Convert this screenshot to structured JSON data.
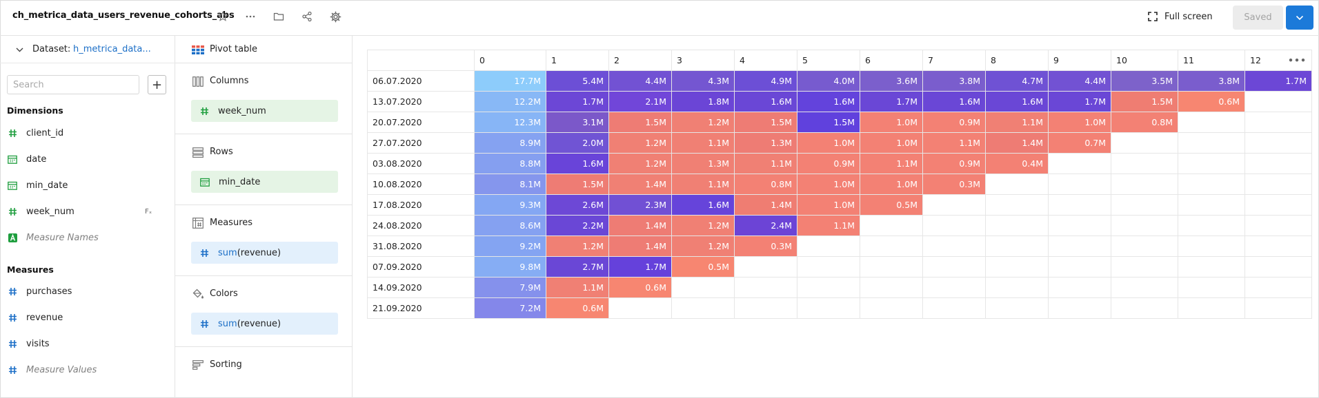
{
  "header": {
    "title": "ch_metrica_data_users_revenue_cohorts_abs",
    "fullscreen_label": "Full screen",
    "saved_label": "Saved",
    "icons": [
      "star-icon",
      "more-icon",
      "folder-icon",
      "share-icon",
      "settings-icon",
      "chevron-down-icon"
    ]
  },
  "dataset": {
    "label": "Dataset:",
    "name": "h_metrica_data...",
    "search_placeholder": "Search",
    "dimensions_heading": "Dimensions",
    "dimensions": [
      {
        "label": "client_id",
        "type": "number",
        "italic": false
      },
      {
        "label": "date",
        "type": "date",
        "italic": false
      },
      {
        "label": "min_date",
        "type": "date",
        "italic": false
      },
      {
        "label": "week_num",
        "type": "number",
        "italic": false,
        "formula_badge": "Fₓ"
      },
      {
        "label": "Measure Names",
        "type": "string",
        "italic": true
      }
    ],
    "measures_heading": "Measures",
    "measures": [
      {
        "label": "purchases",
        "italic": false
      },
      {
        "label": "revenue",
        "italic": false
      },
      {
        "label": "visits",
        "italic": false
      },
      {
        "label": "Measure Values",
        "italic": true
      }
    ]
  },
  "wizard": {
    "visualization": "Pivot table",
    "sections": {
      "columns": {
        "title": "Columns",
        "chip": "week_num"
      },
      "rows": {
        "title": "Rows",
        "chip": "min_date"
      },
      "measures": {
        "title": "Measures",
        "chip_fn": "sum",
        "chip_arg": "(revenue)"
      },
      "colors": {
        "title": "Colors",
        "chip_fn": "sum",
        "chip_arg": "(revenue)"
      },
      "sorting": {
        "title": "Sorting"
      }
    }
  },
  "pivot": {
    "columns": [
      "0",
      "1",
      "2",
      "3",
      "4",
      "5",
      "6",
      "7",
      "8",
      "9",
      "10",
      "11",
      "12"
    ],
    "rows": [
      {
        "date": "06.07.2020",
        "values": [
          "17.7M",
          "5.4M",
          "4.4M",
          "4.3M",
          "4.9M",
          "4.0M",
          "3.6M",
          "3.8M",
          "4.7M",
          "4.4M",
          "3.5M",
          "3.8M",
          "1.7M"
        ]
      },
      {
        "date": "13.07.2020",
        "values": [
          "12.2M",
          "1.7M",
          "2.1M",
          "1.8M",
          "1.6M",
          "1.6M",
          "1.7M",
          "1.6M",
          "1.6M",
          "1.7M",
          "1.5M",
          "0.6M"
        ]
      },
      {
        "date": "20.07.2020",
        "values": [
          "12.3M",
          "3.1M",
          "1.5M",
          "1.2M",
          "1.5M",
          "1.5M",
          "1.0M",
          "0.9M",
          "1.1M",
          "1.0M",
          "0.8M"
        ]
      },
      {
        "date": "27.07.2020",
        "values": [
          "8.9M",
          "2.0M",
          "1.2M",
          "1.1M",
          "1.3M",
          "1.0M",
          "1.0M",
          "1.1M",
          "1.4M",
          "0.7M"
        ]
      },
      {
        "date": "03.08.2020",
        "values": [
          "8.8M",
          "1.6M",
          "1.2M",
          "1.3M",
          "1.1M",
          "0.9M",
          "1.1M",
          "0.9M",
          "0.4M"
        ]
      },
      {
        "date": "10.08.2020",
        "values": [
          "8.1M",
          "1.5M",
          "1.4M",
          "1.1M",
          "0.8M",
          "1.0M",
          "1.0M",
          "0.3M"
        ]
      },
      {
        "date": "17.08.2020",
        "values": [
          "9.3M",
          "2.6M",
          "2.3M",
          "1.6M",
          "1.4M",
          "1.0M",
          "0.5M"
        ]
      },
      {
        "date": "24.08.2020",
        "values": [
          "8.6M",
          "2.2M",
          "1.4M",
          "1.2M",
          "2.4M",
          "1.1M"
        ]
      },
      {
        "date": "31.08.2020",
        "values": [
          "9.2M",
          "1.2M",
          "1.4M",
          "1.2M",
          "0.3M"
        ]
      },
      {
        "date": "07.09.2020",
        "values": [
          "9.8M",
          "2.7M",
          "1.7M",
          "0.5M"
        ]
      },
      {
        "date": "14.09.2020",
        "values": [
          "7.9M",
          "1.1M",
          "0.6M"
        ]
      },
      {
        "date": "21.09.2020",
        "values": [
          "7.2M",
          "0.6M"
        ]
      }
    ],
    "colors": [
      [
        "#8dccfb",
        "#6c4fd6",
        "#7252d3",
        "#7456d1",
        "#6c4fd6",
        "#775bcf",
        "#7b5fcc",
        "#7a5dcd",
        "#6f52d4",
        "#7252d3",
        "#7d62ca",
        "#7a5dcd",
        "#6c47d6"
      ],
      [
        "#88b8f6",
        "#6c47d6",
        "#7146d9",
        "#6b45d6",
        "#6a47d6",
        "#6343dc",
        "#6a47d6",
        "#6a47d6",
        "#6a47d6",
        "#6a47d6",
        "#ef7d72",
        "#f78671"
      ],
      [
        "#87b5f6",
        "#7b58c9",
        "#ee7c74",
        "#f08074",
        "#ee7c74",
        "#6041dd",
        "#f38174",
        "#f38174",
        "#f08074",
        "#f38174",
        "#f38174"
      ],
      [
        "#85a2f1",
        "#7054d4",
        "#f08074",
        "#f08074",
        "#ee7c74",
        "#f38174",
        "#f38174",
        "#f38174",
        "#ee7c74",
        "#f38174"
      ],
      [
        "#859ff0",
        "#6944d9",
        "#f08074",
        "#f08074",
        "#f08074",
        "#f38174",
        "#f38174",
        "#f38174",
        "#f38174"
      ],
      [
        "#8596ed",
        "#ee7c74",
        "#f08074",
        "#f08074",
        "#f38174",
        "#f38174",
        "#f38174",
        "#f38174"
      ],
      [
        "#84a7f3",
        "#6d48d6",
        "#7150d4",
        "#6644da",
        "#ef7d72",
        "#f38174",
        "#f38174"
      ],
      [
        "#85a1f1",
        "#6a47d6",
        "#ee7c74",
        "#f08074",
        "#6c44d6",
        "#f38174"
      ],
      [
        "#84a4f2",
        "#f08074",
        "#ee7c74",
        "#f08074",
        "#f38174"
      ],
      [
        "#86adf4",
        "#6a47d6",
        "#6541db",
        "#f78671"
      ],
      [
        "#8591ec",
        "#f08074",
        "#f78671"
      ],
      [
        "#8487ea",
        "#f78671"
      ]
    ]
  }
}
